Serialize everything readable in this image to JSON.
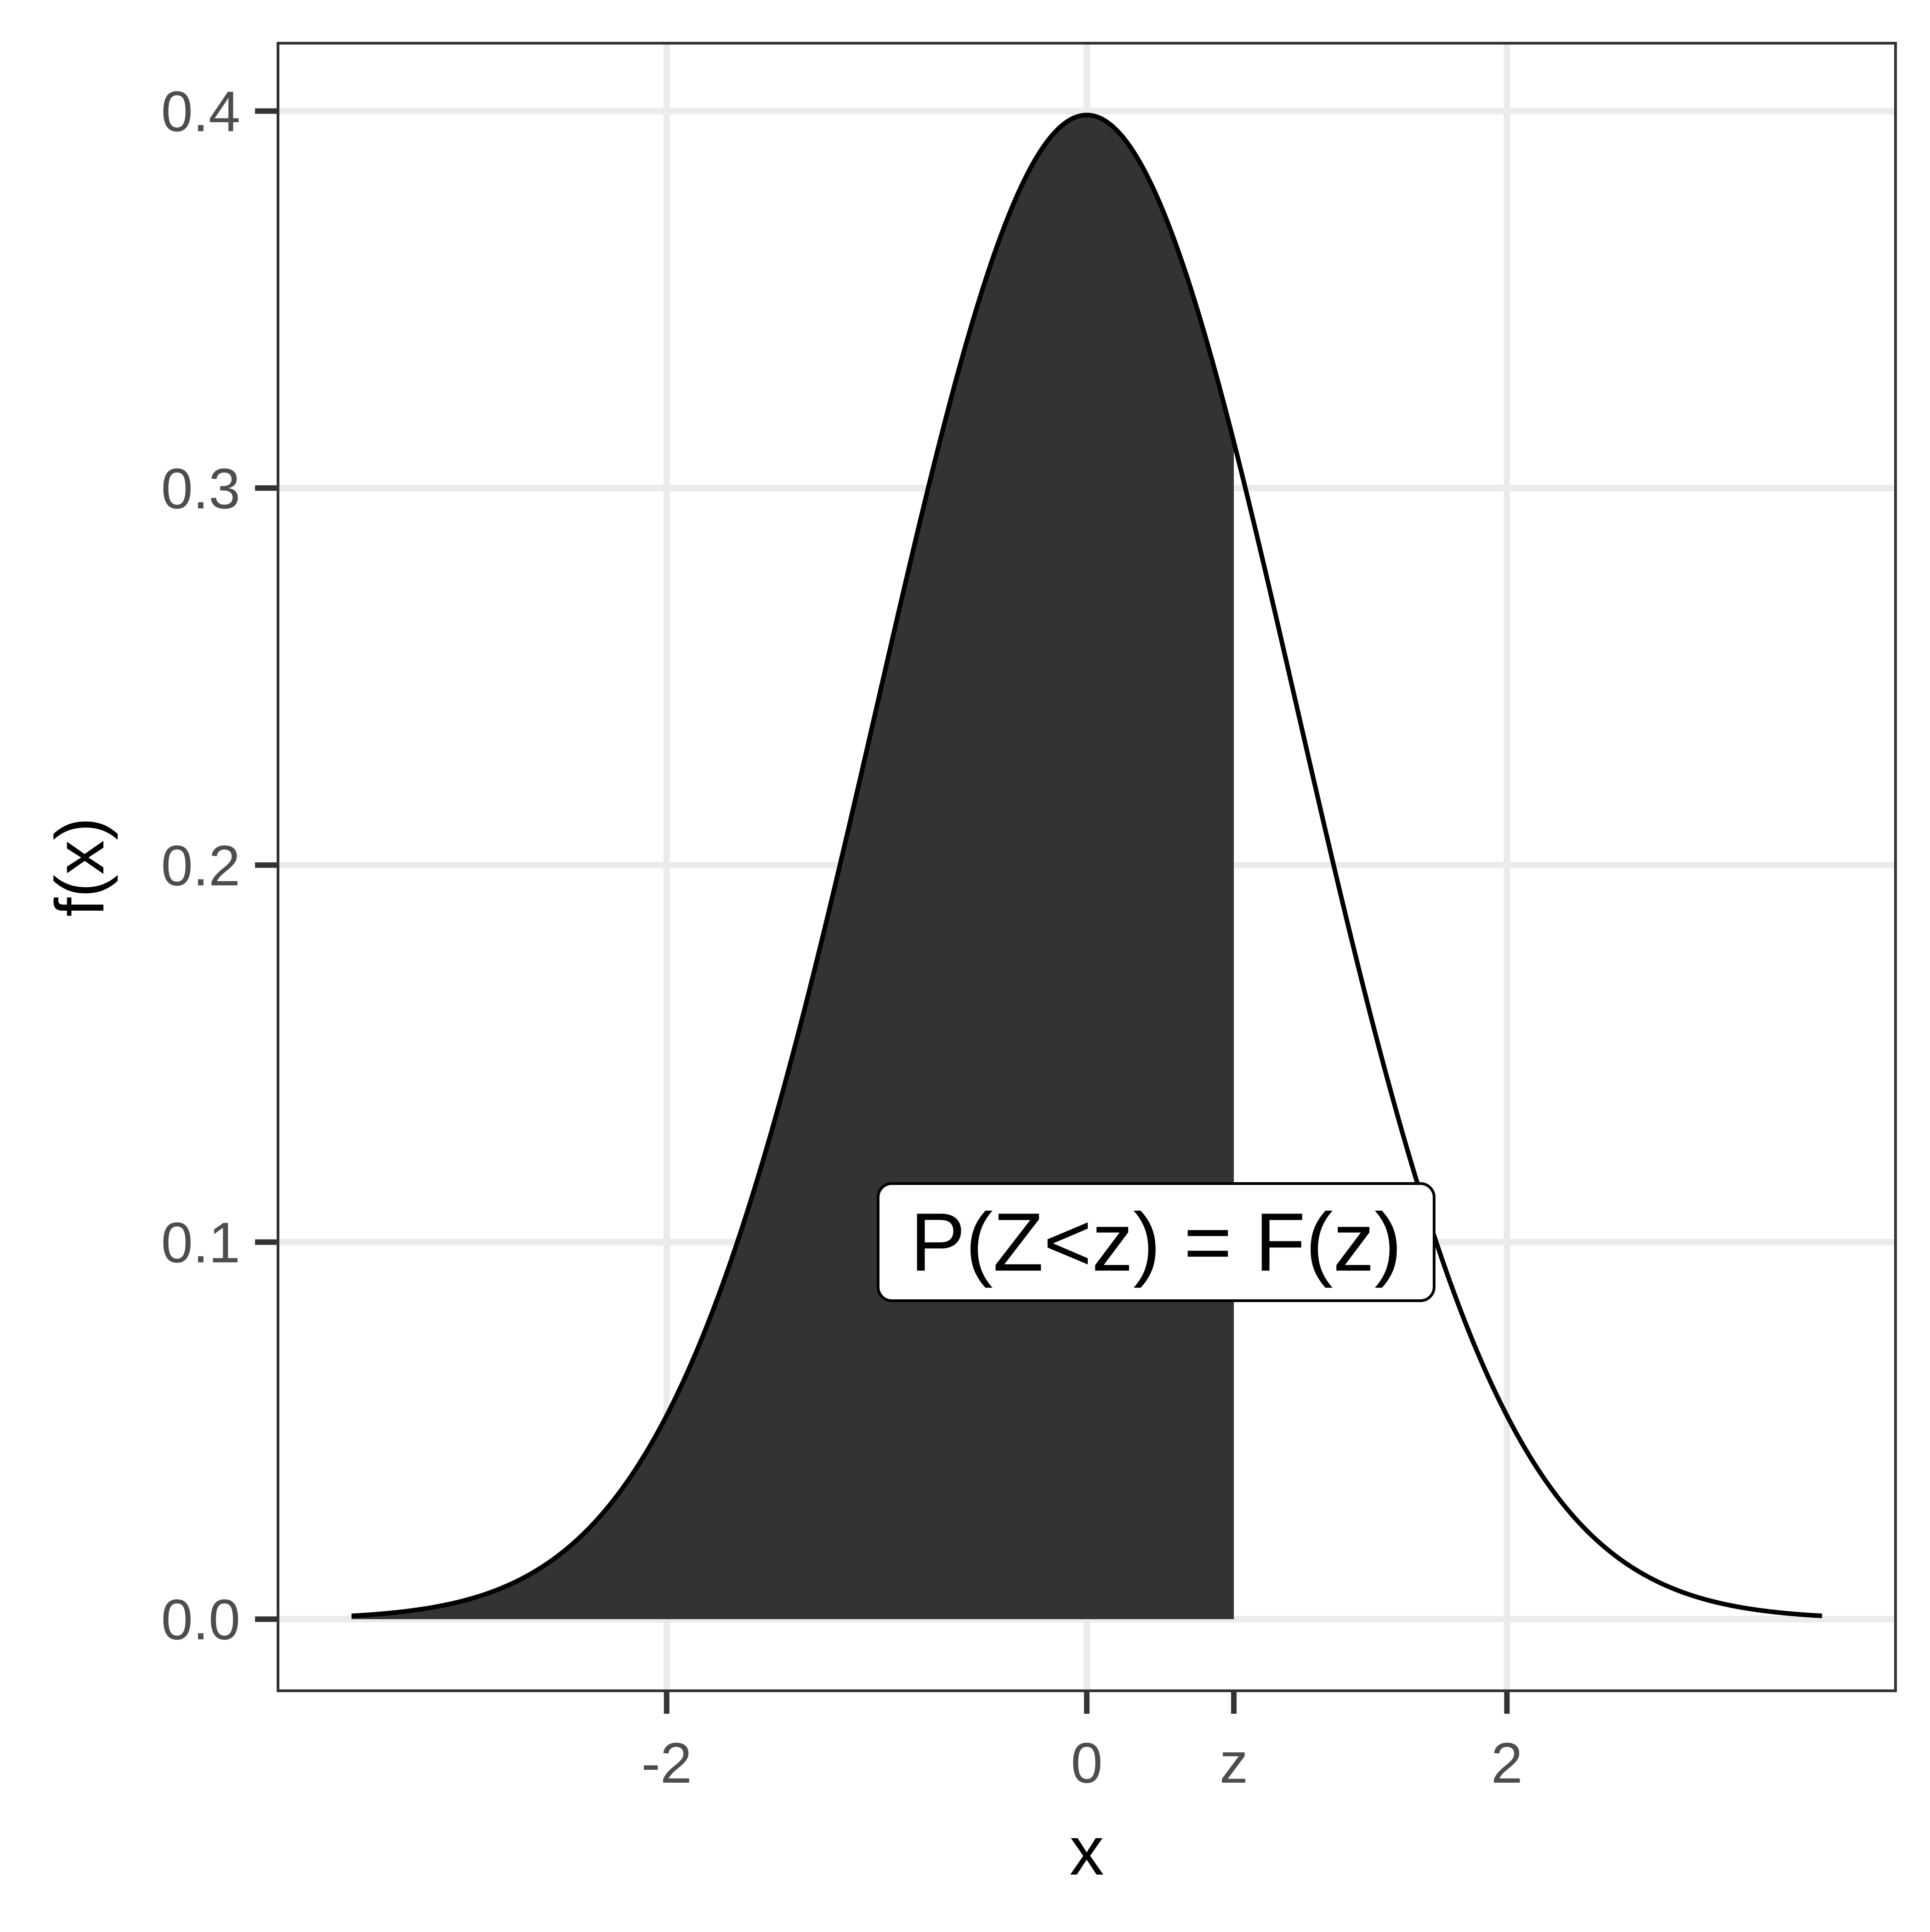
{
  "chart_data": {
    "type": "area",
    "distribution": "standard normal density",
    "mean": 0,
    "sd": 1,
    "curve": {
      "x_from": -3.5,
      "x_to": 3.5
    },
    "shaded_region": {
      "from": -3.5,
      "to": 0.7
    },
    "z_value": 0.7,
    "xlabel": "x",
    "ylabel": "f(x)",
    "xlim": [
      -3.85,
      3.85
    ],
    "ylim": [
      -0.019,
      0.418
    ],
    "x_ticks": [
      {
        "value": -2,
        "label": "-2"
      },
      {
        "value": 0,
        "label": "0"
      },
      {
        "value": 0.7,
        "label": "z"
      },
      {
        "value": 2,
        "label": "2"
      }
    ],
    "y_ticks": [
      {
        "value": 0.0,
        "label": "0.0"
      },
      {
        "value": 0.1,
        "label": "0.1"
      },
      {
        "value": 0.2,
        "label": "0.2"
      },
      {
        "value": 0.3,
        "label": "0.3"
      },
      {
        "value": 0.4,
        "label": "0.4"
      }
    ],
    "x_grid": [
      -2,
      0,
      2
    ],
    "y_grid": [
      0,
      0.1,
      0.2,
      0.3,
      0.4
    ],
    "grid": true,
    "annotation": {
      "text": "P(Z<z) = F(z)",
      "x": 0.33,
      "y": 0.1
    },
    "colors": {
      "fill": "#333333",
      "curve": "#000000",
      "grid": "#ebebeb",
      "panel_border": "#333333",
      "tick_mark": "#333333",
      "tick_label": "#4d4d4d"
    }
  }
}
